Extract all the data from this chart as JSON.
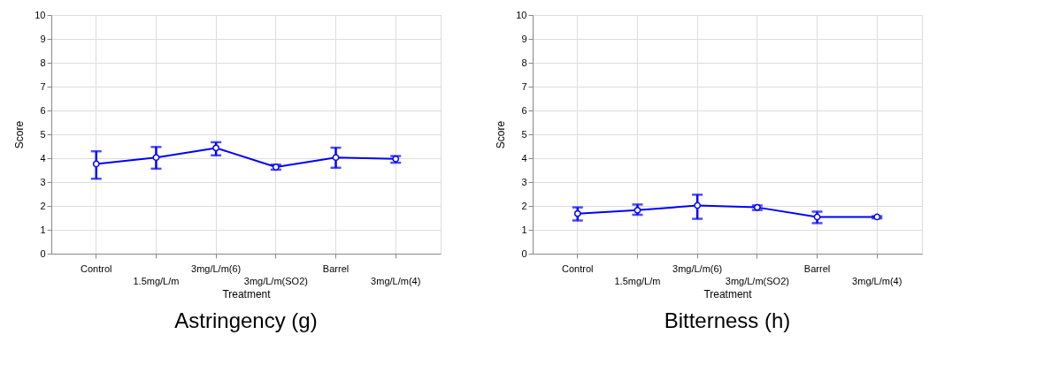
{
  "chart_data": [
    {
      "type": "line",
      "title": "Astringency (g)",
      "xlabel": "Treatment",
      "ylabel": "Score",
      "categories": [
        "Control",
        "1.5mg/L/m",
        "3mg/L/m(6)",
        "3mg/L/m(SO2)",
        "Barrel",
        "3mg/L/m(4)"
      ],
      "series": [
        {
          "color": "#0000ff",
          "values": [
            3.76,
            4.03,
            4.43,
            3.63,
            4.03,
            3.97
          ],
          "errors": [
            [
              3.14,
              4.29
            ],
            [
              3.56,
              4.47
            ],
            [
              4.12,
              4.67
            ],
            [
              3.52,
              3.73
            ],
            [
              3.6,
              4.44
            ],
            [
              3.81,
              4.09
            ]
          ]
        }
      ],
      "ylim": [
        0,
        10
      ],
      "yticks": [
        0,
        1,
        2,
        3,
        4,
        5,
        6,
        7,
        8,
        9,
        10
      ],
      "grid": true,
      "marker": "circle",
      "line_style": "solid"
    },
    {
      "type": "line",
      "title": "Bitterness (h)",
      "xlabel": "Treatment",
      "ylabel": "Score",
      "categories": [
        "Control",
        "1.5mg/L/m",
        "3mg/L/m(6)",
        "3mg/L/m(SO2)",
        "Barrel",
        "3mg/L/m(4)"
      ],
      "series": [
        {
          "color": "#0000ff",
          "values": [
            1.68,
            1.82,
            2.02,
            1.94,
            1.54,
            1.54
          ],
          "errors": [
            [
              1.39,
              1.94
            ],
            [
              1.63,
              2.06
            ],
            [
              1.46,
              2.47
            ],
            [
              1.83,
              2.02
            ],
            [
              1.28,
              1.76
            ],
            [
              1.48,
              1.57
            ]
          ]
        }
      ],
      "ylim": [
        0,
        10
      ],
      "yticks": [
        0,
        1,
        2,
        3,
        4,
        5,
        6,
        7,
        8,
        9,
        10
      ],
      "grid": true,
      "marker": "circle",
      "line_style": "solid"
    }
  ]
}
